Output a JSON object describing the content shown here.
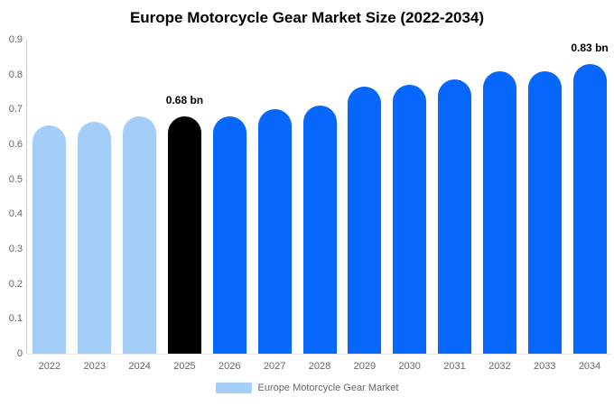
{
  "chart_data": {
    "type": "bar",
    "title": "Europe Motorcycle Gear Market Size (2022-2034)",
    "unit": "bn",
    "categories": [
      "2022",
      "2023",
      "2024",
      "2025",
      "2026",
      "2027",
      "2028",
      "2029",
      "2030",
      "2031",
      "2032",
      "2033",
      "2034"
    ],
    "series": [
      {
        "name": "Europe Motorcycle Gear Market",
        "values": [
          0.655,
          0.665,
          0.68,
          0.68,
          0.68,
          0.7,
          0.71,
          0.765,
          0.77,
          0.785,
          0.81,
          0.81,
          0.83
        ]
      }
    ],
    "bar_colors": [
      "#a4cdf8",
      "#a4cdf8",
      "#a4cdf8",
      "#000000",
      "#0667fc",
      "#0667fc",
      "#0667fc",
      "#0667fc",
      "#0667fc",
      "#0667fc",
      "#0667fc",
      "#0667fc",
      "#0667fc"
    ],
    "colors": {
      "historical": "#a4cdf8",
      "base_year": "#000000",
      "forecast": "#0667fc",
      "axis_line": "#cccccc",
      "tick_text": "#666666"
    },
    "ylim": [
      0,
      0.9
    ],
    "ytick_labels": [
      "0",
      "0.1",
      "0.2",
      "0.3",
      "0.4",
      "0.5",
      "0.6",
      "0.7",
      "0.8",
      "0.9"
    ],
    "yticks": [
      0,
      0.1,
      0.2,
      0.3,
      0.4,
      0.5,
      0.6,
      0.7,
      0.8,
      0.9
    ],
    "grid": false,
    "annotations": [
      {
        "category": "2025",
        "text": "0.68 bn"
      },
      {
        "category": "2034",
        "text": "0.83 bn"
      }
    ],
    "legend": {
      "label": "Europe Motorcycle Gear Market",
      "swatch_color": "#a4cdf8",
      "position": "bottom"
    }
  }
}
